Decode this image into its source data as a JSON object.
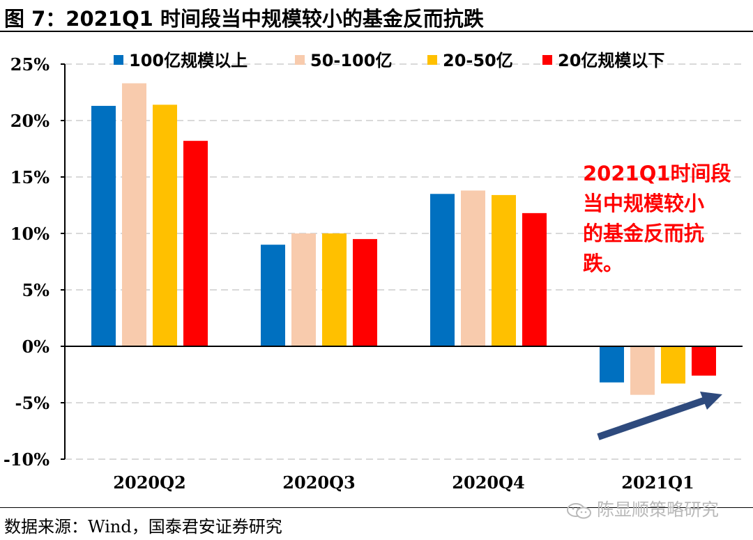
{
  "figure_title": "图 7：2021Q1 时间段当中规模较小的基金反而抗跌",
  "source_note": "数据来源：Wind，国泰君安证券研究",
  "watermark": "陈显顺策略研究",
  "chart_data": {
    "type": "bar",
    "categories": [
      "2020Q2",
      "2020Q3",
      "2020Q4",
      "2021Q1"
    ],
    "series": [
      {
        "name": "100亿规模以上",
        "color": "#0070C0",
        "values": [
          21.3,
          9.0,
          13.5,
          -3.2
        ]
      },
      {
        "name": "50-100亿",
        "color": "#F8CBAD",
        "values": [
          23.3,
          10.0,
          13.8,
          -4.3
        ]
      },
      {
        "name": "20-50亿",
        "color": "#FFC000",
        "values": [
          21.4,
          10.0,
          13.4,
          -3.3
        ]
      },
      {
        "name": "20亿规模以下",
        "color": "#FF0000",
        "values": [
          18.2,
          9.5,
          11.8,
          -2.6
        ]
      }
    ],
    "ylim": [
      -10,
      25
    ],
    "yticks": [
      -10,
      -5,
      0,
      5,
      10,
      15,
      20,
      25
    ],
    "ytick_labels": [
      "-10%",
      "-5%",
      "0%",
      "5%",
      "10%",
      "15%",
      "20%",
      "25%"
    ],
    "grid": "dashed-horizontal",
    "legend_position": "top",
    "annotation": {
      "lines": [
        "2021Q1时间段",
        "当中规模较小",
        "的基金反而抗",
        "跌。"
      ],
      "color": "#FF0000"
    },
    "arrow": {
      "color": "#2E4A7D",
      "direction": "up-right"
    }
  }
}
